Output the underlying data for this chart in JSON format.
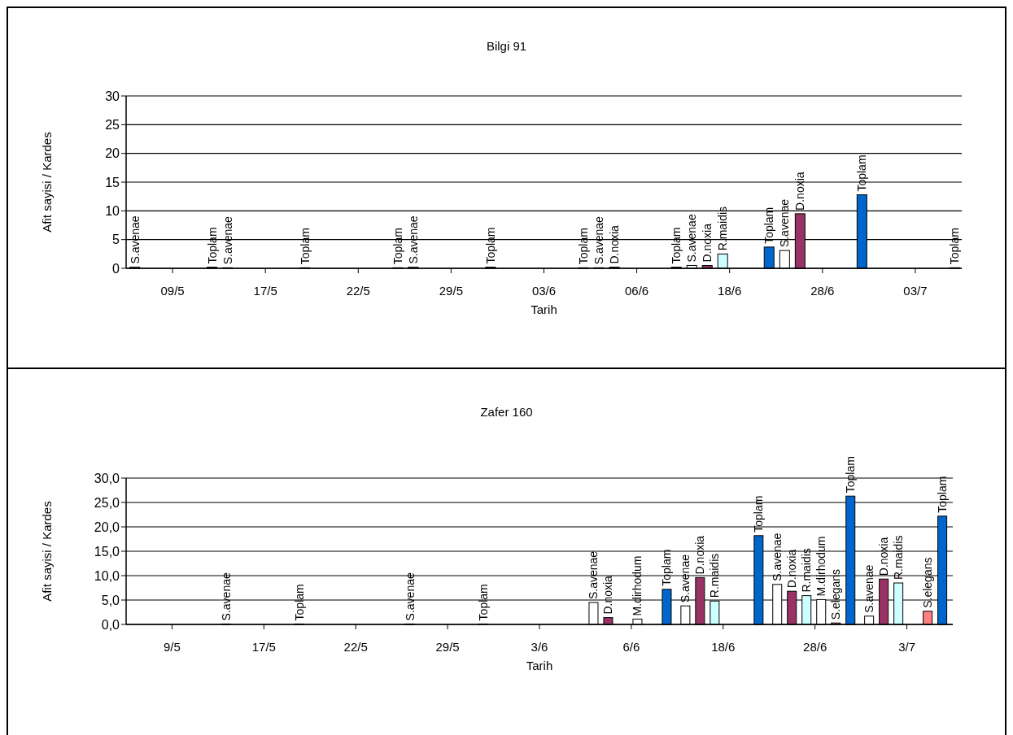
{
  "chart_data": [
    {
      "type": "bar",
      "title": "Bilgi 91",
      "xlabel": "Tarih",
      "ylabel": "Afit sayisi / Kardes",
      "categories": [
        "09/5",
        "17/5",
        "22/5",
        "29/5",
        "03/6",
        "06/6",
        "18/6",
        "28/6",
        "03/7"
      ],
      "ylim": [
        0,
        30
      ],
      "yticks": [
        0,
        5,
        10,
        15,
        20,
        25,
        30
      ],
      "grid": "y",
      "series": [
        {
          "color": "#ffffff",
          "values": [
            0.2,
            0.1,
            null,
            0.2,
            null,
            0.1,
            0.5,
            3.1,
            null
          ],
          "value_labels": [
            "S.avenae",
            "S.avenae",
            null,
            "S.avenae",
            null,
            "S.avenae",
            "S.avenae",
            "S.avenae",
            null
          ]
        },
        {
          "color": "#993366",
          "values": [
            null,
            null,
            null,
            null,
            null,
            0.2,
            0.5,
            9.5,
            null
          ],
          "value_labels": [
            null,
            null,
            null,
            null,
            null,
            "D.noxia",
            "D.noxia",
            "D.noxia",
            null
          ]
        },
        {
          "color": "#ccffff",
          "values": [
            null,
            null,
            null,
            null,
            null,
            null,
            2.5,
            null,
            null
          ],
          "value_labels": [
            null,
            null,
            null,
            null,
            null,
            null,
            "R.maidis",
            null,
            null
          ]
        },
        {
          "color": "#ffffff",
          "values": [
            null,
            null,
            null,
            null,
            null,
            null,
            null,
            null,
            null
          ],
          "value_labels": [
            null,
            null,
            null,
            null,
            null,
            null,
            null,
            null,
            null
          ]
        },
        {
          "color": "#ff8080",
          "values": [
            null,
            null,
            null,
            null,
            null,
            null,
            null,
            null,
            null
          ],
          "value_labels": [
            null,
            null,
            null,
            null,
            null,
            null,
            null,
            null,
            null
          ]
        },
        {
          "color": "#0066cc",
          "values": [
            0.2,
            0.1,
            0.1,
            0.2,
            0.1,
            0.2,
            3.7,
            12.8,
            0.1
          ],
          "value_labels": [
            "Toplam",
            "Toplam",
            "Toplam",
            "Toplam",
            "Toplam",
            "Toplam",
            "Toplam",
            "Toplam",
            "Toplam"
          ]
        }
      ]
    },
    {
      "type": "bar",
      "title": "Zafer 160",
      "xlabel": "Tarih",
      "ylabel": "Afit sayisi / Kardes",
      "categories": [
        "9/5",
        "17/5",
        "22/5",
        "29/5",
        "3/6",
        "6/6",
        "18/6",
        "28/6",
        "3/7"
      ],
      "ylim": [
        0,
        30
      ],
      "yticks": [
        {
          "value": 0,
          "label": "0,0"
        },
        {
          "value": 5,
          "label": "5,0"
        },
        {
          "value": 10,
          "label": "10,0"
        },
        {
          "value": 15,
          "label": "15,0"
        },
        {
          "value": 20,
          "label": "20,0"
        },
        {
          "value": 25,
          "label": "25,0"
        },
        {
          "value": 30,
          "label": "30,0"
        }
      ],
      "grid": "y",
      "series": [
        {
          "color": "#ffffff",
          "values": [
            null,
            0.1,
            null,
            0.1,
            null,
            4.5,
            3.8,
            8.2,
            1.7
          ],
          "value_labels": [
            null,
            "S.avenae",
            null,
            "S.avenae",
            null,
            "S.avenae",
            "S.avenae",
            "S.avenae",
            "S.avenae"
          ]
        },
        {
          "color": "#993366",
          "values": [
            null,
            null,
            null,
            null,
            null,
            1.4,
            9.6,
            6.8,
            9.3
          ],
          "value_labels": [
            null,
            null,
            null,
            null,
            null,
            "D.noxia",
            "D.noxia",
            "D.noxia",
            "D.noxia"
          ]
        },
        {
          "color": "#ccffff",
          "values": [
            null,
            null,
            null,
            null,
            null,
            null,
            4.8,
            5.9,
            8.5
          ],
          "value_labels": [
            null,
            null,
            null,
            null,
            null,
            null,
            "R.maidis",
            "R.maidis",
            "R.maidis"
          ]
        },
        {
          "color": "#ffffff",
          "values": [
            null,
            null,
            null,
            null,
            null,
            1.1,
            null,
            5.1,
            null
          ],
          "value_labels": [
            null,
            null,
            null,
            null,
            null,
            "M.dirhodum",
            null,
            "M.dirhodum",
            null
          ]
        },
        {
          "color": "#ff8080",
          "values": [
            null,
            null,
            null,
            null,
            null,
            null,
            null,
            0.3,
            2.7
          ],
          "value_labels": [
            null,
            null,
            null,
            null,
            null,
            null,
            null,
            "S.elegans",
            "S.elegans"
          ]
        },
        {
          "color": "#0066cc",
          "values": [
            null,
            0.1,
            null,
            0.1,
            null,
            7.2,
            18.2,
            26.3,
            22.2
          ],
          "value_labels": [
            null,
            "Toplam",
            null,
            "Toplam",
            null,
            "Toplam",
            "Toplam",
            "Toplam",
            "Toplam"
          ]
        }
      ]
    }
  ]
}
